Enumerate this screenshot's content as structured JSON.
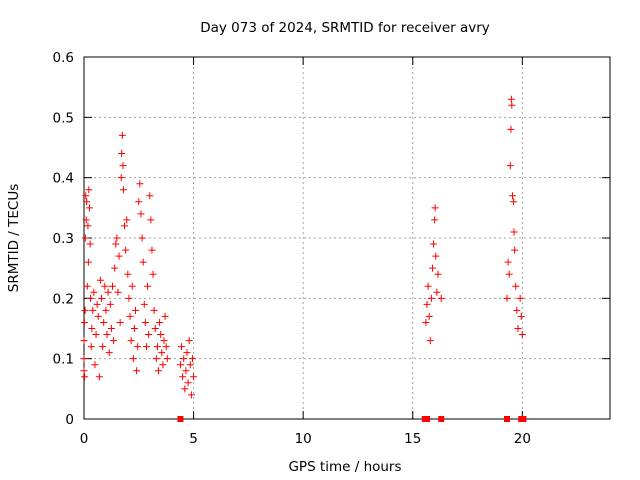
{
  "chart_data": {
    "type": "scatter",
    "title": "Day 073 of 2024, SRMTID for receiver avry",
    "xlabel": "GPS time / hours",
    "ylabel": "SRMTID / TECUs",
    "xlim": [
      0,
      24
    ],
    "ylim": [
      0,
      0.6
    ],
    "xticks": [
      0,
      5,
      10,
      15,
      20
    ],
    "yticks": [
      0,
      0.1,
      0.2,
      0.3,
      0.4,
      0.5,
      0.6
    ],
    "xtick_labels": [
      "0",
      "5",
      "10",
      "15",
      "20"
    ],
    "ytick_labels": [
      "0",
      "0.1",
      "0.2",
      "0.3",
      "0.4",
      "0.5",
      "0.6"
    ],
    "grid": true,
    "marker": "+",
    "color": "#ff0000",
    "series": [
      {
        "name": "SRMTID",
        "points": [
          [
            0.0,
            0.08
          ],
          [
            0.0,
            0.1
          ],
          [
            0.0,
            0.13
          ],
          [
            0.02,
            0.16
          ],
          [
            0.03,
            0.07
          ],
          [
            0.05,
            0.18
          ],
          [
            0.06,
            0.3
          ],
          [
            0.08,
            0.37
          ],
          [
            0.1,
            0.33
          ],
          [
            0.12,
            0.36
          ],
          [
            0.15,
            0.22
          ],
          [
            0.18,
            0.32
          ],
          [
            0.2,
            0.26
          ],
          [
            0.22,
            0.38
          ],
          [
            0.25,
            0.35
          ],
          [
            0.28,
            0.29
          ],
          [
            0.3,
            0.2
          ],
          [
            0.33,
            0.12
          ],
          [
            0.36,
            0.15
          ],
          [
            0.4,
            0.18
          ],
          [
            0.45,
            0.21
          ],
          [
            0.5,
            0.09
          ],
          [
            0.55,
            0.14
          ],
          [
            0.6,
            0.19
          ],
          [
            0.65,
            0.17
          ],
          [
            0.7,
            0.07
          ],
          [
            0.75,
            0.23
          ],
          [
            0.8,
            0.2
          ],
          [
            0.85,
            0.12
          ],
          [
            0.9,
            0.16
          ],
          [
            0.95,
            0.22
          ],
          [
            1.0,
            0.18
          ],
          [
            1.05,
            0.14
          ],
          [
            1.1,
            0.21
          ],
          [
            1.15,
            0.11
          ],
          [
            1.2,
            0.19
          ],
          [
            1.25,
            0.15
          ],
          [
            1.3,
            0.22
          ],
          [
            1.35,
            0.13
          ],
          [
            1.4,
            0.25
          ],
          [
            1.45,
            0.29
          ],
          [
            1.5,
            0.3
          ],
          [
            1.55,
            0.21
          ],
          [
            1.6,
            0.27
          ],
          [
            1.65,
            0.16
          ],
          [
            1.7,
            0.4
          ],
          [
            1.72,
            0.44
          ],
          [
            1.75,
            0.47
          ],
          [
            1.78,
            0.42
          ],
          [
            1.8,
            0.38
          ],
          [
            1.85,
            0.32
          ],
          [
            1.9,
            0.28
          ],
          [
            1.95,
            0.33
          ],
          [
            2.0,
            0.24
          ],
          [
            2.05,
            0.2
          ],
          [
            2.1,
            0.17
          ],
          [
            2.15,
            0.13
          ],
          [
            2.2,
            0.22
          ],
          [
            2.25,
            0.1
          ],
          [
            2.3,
            0.15
          ],
          [
            2.35,
            0.18
          ],
          [
            2.4,
            0.08
          ],
          [
            2.45,
            0.12
          ],
          [
            2.5,
            0.36
          ],
          [
            2.55,
            0.39
          ],
          [
            2.6,
            0.34
          ],
          [
            2.65,
            0.3
          ],
          [
            2.7,
            0.26
          ],
          [
            2.75,
            0.19
          ],
          [
            2.8,
            0.16
          ],
          [
            2.85,
            0.12
          ],
          [
            2.9,
            0.22
          ],
          [
            2.95,
            0.14
          ],
          [
            3.0,
            0.37
          ],
          [
            3.05,
            0.33
          ],
          [
            3.1,
            0.28
          ],
          [
            3.15,
            0.24
          ],
          [
            3.2,
            0.18
          ],
          [
            3.25,
            0.15
          ],
          [
            3.3,
            0.1
          ],
          [
            3.35,
            0.12
          ],
          [
            3.4,
            0.08
          ],
          [
            3.45,
            0.16
          ],
          [
            3.5,
            0.14
          ],
          [
            3.55,
            0.11
          ],
          [
            3.6,
            0.09
          ],
          [
            3.65,
            0.13
          ],
          [
            3.7,
            0.17
          ],
          [
            3.75,
            0.12
          ],
          [
            3.8,
            0.1
          ],
          [
            4.4,
            0.09
          ],
          [
            4.45,
            0.12
          ],
          [
            4.5,
            0.07
          ],
          [
            4.55,
            0.1
          ],
          [
            4.6,
            0.05
          ],
          [
            4.65,
            0.08
          ],
          [
            4.7,
            0.11
          ],
          [
            4.75,
            0.06
          ],
          [
            4.8,
            0.13
          ],
          [
            4.85,
            0.09
          ],
          [
            4.9,
            0.04
          ],
          [
            4.95,
            0.1
          ],
          [
            5.0,
            0.07
          ],
          [
            15.6,
            0.16
          ],
          [
            15.65,
            0.19
          ],
          [
            15.7,
            0.22
          ],
          [
            15.75,
            0.17
          ],
          [
            15.8,
            0.13
          ],
          [
            15.85,
            0.2
          ],
          [
            15.9,
            0.25
          ],
          [
            15.95,
            0.29
          ],
          [
            16.0,
            0.33
          ],
          [
            16.02,
            0.35
          ],
          [
            16.05,
            0.27
          ],
          [
            16.1,
            0.21
          ],
          [
            16.15,
            0.24
          ],
          [
            16.3,
            0.2
          ],
          [
            19.3,
            0.2
          ],
          [
            19.35,
            0.26
          ],
          [
            19.4,
            0.24
          ],
          [
            19.45,
            0.42
          ],
          [
            19.48,
            0.48
          ],
          [
            19.5,
            0.53
          ],
          [
            19.52,
            0.52
          ],
          [
            19.55,
            0.37
          ],
          [
            19.6,
            0.36
          ],
          [
            19.62,
            0.31
          ],
          [
            19.65,
            0.28
          ],
          [
            19.7,
            0.22
          ],
          [
            19.75,
            0.18
          ],
          [
            19.8,
            0.15
          ],
          [
            19.9,
            0.2
          ],
          [
            19.95,
            0.17
          ],
          [
            20.0,
            0.14
          ]
        ]
      }
    ],
    "zero_markers_x": [
      4.4,
      15.55,
      15.65,
      16.3,
      19.3,
      19.95,
      20.05
    ]
  }
}
